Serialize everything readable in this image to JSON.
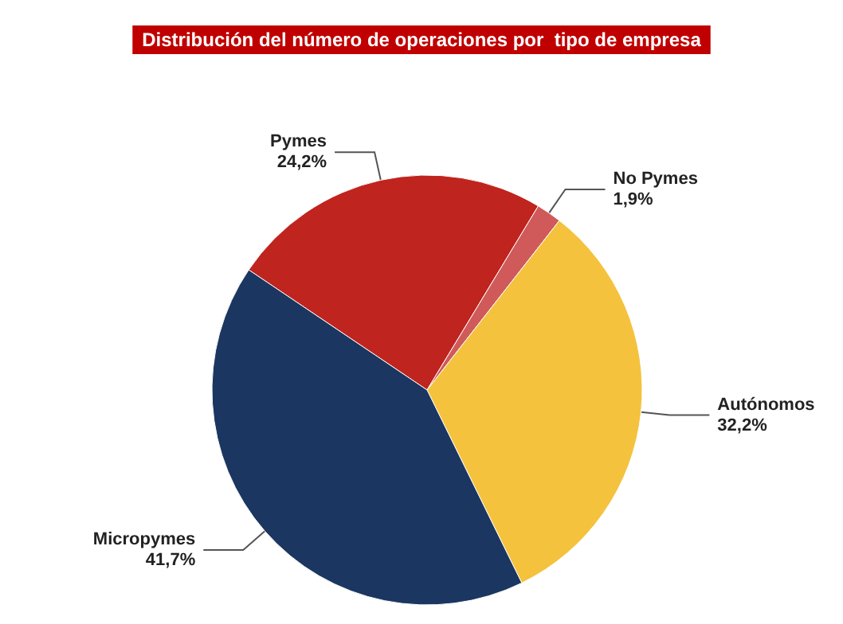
{
  "chart_data": {
    "type": "pie",
    "title": "Distribución del número de operaciones por  tipo de empresa",
    "categories": [
      "Pymes",
      "No Pymes",
      "Autónomos",
      "Micropymes"
    ],
    "values": [
      24.2,
      1.9,
      32.2,
      41.7
    ],
    "value_labels": [
      "24,2%",
      "1,9%",
      "32,2%",
      "41,7%"
    ],
    "colors": [
      "#c0241e",
      "#d05a5a",
      "#f4c23c",
      "#1b3660"
    ],
    "legend": false
  }
}
